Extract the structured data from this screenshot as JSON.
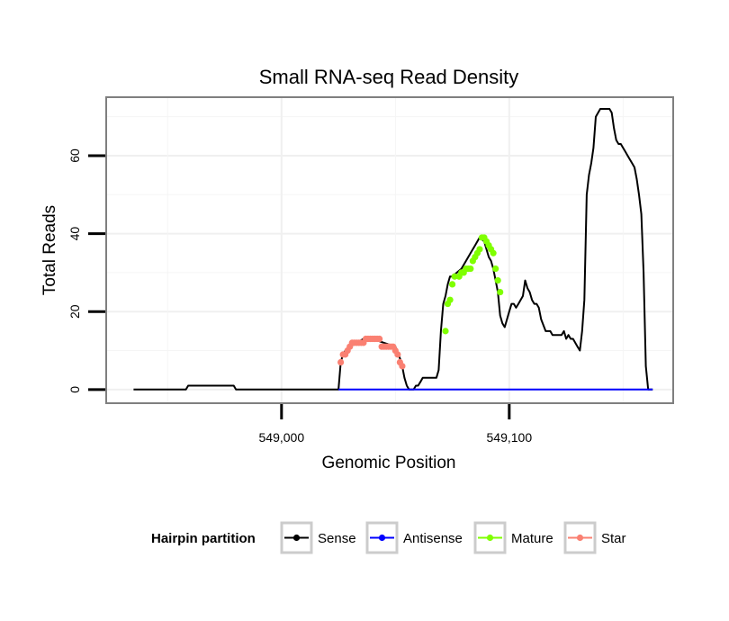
{
  "chart_data": {
    "type": "line",
    "title": "Small RNA-seq Read Density",
    "xlabel": "Genomic Position",
    "ylabel": "Total Reads",
    "xlim": [
      548923,
      549172
    ],
    "ylim": [
      -3.5,
      75
    ],
    "x_ticks": [
      549000,
      549100
    ],
    "x_tick_labels": [
      "549,000",
      "549,100"
    ],
    "y_ticks": [
      0,
      20,
      40,
      60
    ],
    "y_tick_labels": [
      "0",
      "20",
      "40",
      "60"
    ],
    "grid": true,
    "legend": {
      "title": "Hairpin partition",
      "position": "bottom",
      "entries": [
        {
          "label": "Sense",
          "color": "#000000"
        },
        {
          "label": "Antisense",
          "color": "#0000ff"
        },
        {
          "label": "Mature",
          "color": "#7fff00"
        },
        {
          "label": "Star",
          "color": "#fa8072"
        }
      ]
    },
    "series": [
      {
        "name": "Sense",
        "color": "#000000",
        "x": [
          548935,
          548958,
          548959,
          548979,
          548980,
          549025,
          549026,
          549027,
          549028,
          549030,
          549033,
          549036,
          549040,
          549045,
          549050,
          549052,
          549053,
          549054,
          549055,
          549056,
          549058,
          549059,
          549060,
          549061,
          549062,
          549063,
          549064,
          549065,
          549068,
          549069,
          549070,
          549071,
          549072,
          549073,
          549074,
          549075,
          549077,
          549079,
          549081,
          549083,
          549085,
          549087,
          549089,
          549090,
          549091,
          549092,
          549093,
          549094,
          549095,
          549096,
          549097,
          549098,
          549099,
          549100,
          549101,
          549102,
          549103,
          549104,
          549105,
          549106,
          549107,
          549108,
          549109,
          549110,
          549111,
          549112,
          549113,
          549114,
          549116,
          549118,
          549119,
          549120,
          549121,
          549122,
          549123,
          549124,
          549125,
          549126,
          549127,
          549128,
          549129,
          549130,
          549131,
          549132,
          549133,
          549134,
          549135,
          549136,
          549137,
          549138,
          549140,
          549142,
          549143,
          549144,
          549145,
          549146,
          549147,
          549148,
          549149,
          549150,
          549151,
          549152,
          549153,
          549154,
          549155,
          549156,
          549157,
          549158,
          549159,
          549160,
          549161,
          549162,
          549163
        ],
        "y": [
          0,
          0,
          1,
          1,
          0,
          0,
          7,
          9,
          10,
          11,
          12,
          13,
          13,
          12,
          11,
          8,
          6,
          3,
          1,
          0,
          0,
          1,
          1,
          2,
          3,
          3,
          3,
          3,
          3,
          5,
          15,
          22,
          24,
          27,
          29,
          29,
          30,
          31,
          33,
          35,
          37,
          39,
          38,
          36,
          34,
          33,
          31,
          28,
          25,
          19,
          17,
          16,
          18,
          20,
          22,
          22,
          21,
          22,
          23,
          24,
          28,
          26,
          25,
          23,
          22,
          22,
          21,
          18,
          15,
          15,
          14,
          14,
          14,
          14,
          14,
          15,
          13,
          14,
          13,
          13,
          12,
          11,
          10,
          15,
          23,
          50,
          55,
          58,
          62,
          70,
          72,
          72,
          72,
          72,
          71,
          67,
          64,
          63,
          63,
          62,
          61,
          60,
          59,
          58,
          57,
          54,
          50,
          45,
          30,
          6,
          0,
          0,
          0
        ]
      },
      {
        "name": "Antisense",
        "color": "#0000ff",
        "x": [
          549025,
          549163
        ],
        "y": [
          0,
          0
        ]
      },
      {
        "name": "Mature",
        "color": "#7fff00",
        "points": true,
        "x": [
          549072,
          549073,
          549074,
          549075,
          549076,
          549078,
          549079,
          549080,
          549081,
          549082,
          549083,
          549084,
          549085,
          549086,
          549087,
          549088,
          549089,
          549090,
          549091,
          549092,
          549093,
          549094,
          549095,
          549096
        ],
        "y": [
          15,
          22,
          23,
          27,
          29,
          29,
          30,
          30,
          31,
          31,
          31,
          33,
          34,
          35,
          36,
          39,
          39,
          38,
          37,
          36,
          35,
          31,
          28,
          25
        ]
      },
      {
        "name": "Star",
        "color": "#fa8072",
        "points": true,
        "x": [
          549026,
          549027,
          549028,
          549029,
          549030,
          549031,
          549032,
          549033,
          549034,
          549035,
          549036,
          549037,
          549038,
          549039,
          549040,
          549041,
          549042,
          549043,
          549044,
          549045,
          549046,
          549047,
          549048,
          549049,
          549050,
          549051,
          549052,
          549053
        ],
        "y": [
          7,
          9,
          9,
          10,
          11,
          12,
          12,
          12,
          12,
          12,
          12,
          13,
          13,
          13,
          13,
          13,
          13,
          13,
          11,
          11,
          11,
          11,
          11,
          11,
          10,
          9,
          7,
          6
        ]
      }
    ]
  }
}
